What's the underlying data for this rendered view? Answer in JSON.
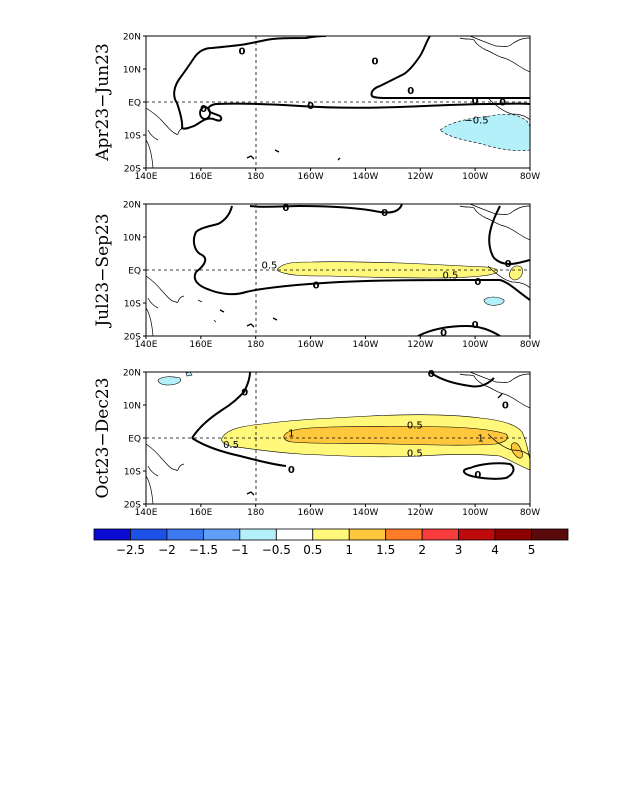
{
  "figure": {
    "panels": [
      {
        "title": "Apr23−Jun23",
        "labels": [
          {
            "text": "0",
            "lon": 175,
            "lat": 15.5
          },
          {
            "text": "0",
            "lon": 223.5,
            "lat": 12.5
          },
          {
            "text": "0",
            "lon": 236.5,
            "lat": 3.5
          },
          {
            "text": "0",
            "lon": 260,
            "lat": 0.5
          },
          {
            "text": "0",
            "lon": 270,
            "lat": 0
          },
          {
            "text": "0",
            "lon": 161,
            "lat": -2
          },
          {
            "text": "0",
            "lon": 200,
            "lat": -1
          },
          {
            "text": "−0.5",
            "lon": 260.5,
            "lat": -5.5
          }
        ]
      },
      {
        "title": "Jul23−Sep23",
        "labels": [
          {
            "text": "0",
            "lon": 191,
            "lat": 19
          },
          {
            "text": "0",
            "lon": 227,
            "lat": 17.5
          },
          {
            "text": "0.5",
            "lon": 185,
            "lat": 1.5
          },
          {
            "text": "0.5",
            "lon": 251,
            "lat": -1.5
          },
          {
            "text": "0",
            "lon": 202,
            "lat": -4.5
          },
          {
            "text": "0",
            "lon": 261,
            "lat": -3.5
          },
          {
            "text": "0",
            "lon": 272,
            "lat": 2
          },
          {
            "text": "0",
            "lon": 260,
            "lat": -16.5
          },
          {
            "text": "0",
            "lon": 248.5,
            "lat": -19
          }
        ]
      },
      {
        "title": "Oct23−Dec23",
        "labels": [
          {
            "text": "0",
            "lon": 176,
            "lat": 14
          },
          {
            "text": "0",
            "lon": 244,
            "lat": 19.5
          },
          {
            "text": "0",
            "lon": 271,
            "lat": 10
          },
          {
            "text": "0.5",
            "lon": 238,
            "lat": 4
          },
          {
            "text": "1",
            "lon": 193,
            "lat": 1.5
          },
          {
            "text": "1",
            "lon": 262,
            "lat": 0
          },
          {
            "text": "0.5",
            "lon": 171,
            "lat": -2
          },
          {
            "text": "0.5",
            "lon": 238,
            "lat": -4.5
          },
          {
            "text": "0",
            "lon": 193,
            "lat": -9.5
          },
          {
            "text": "0",
            "lon": 261,
            "lat": -11
          }
        ]
      }
    ],
    "x_ticks": [
      "140E",
      "160E",
      "180",
      "160W",
      "140W",
      "120W",
      "100W",
      "80W"
    ],
    "y_ticks": [
      "20N",
      "10N",
      "EQ",
      "10S",
      "20S"
    ],
    "colorbar": {
      "colors": [
        "#0a0ad2",
        "#1d50e6",
        "#3c78f0",
        "#5f9ff8",
        "#b4f0fa",
        "#ffffff",
        "#fff87a",
        "#ffc83c",
        "#ff7c28",
        "#fa3c3c",
        "#be0a0a",
        "#8c0000",
        "#5a0a0a"
      ],
      "labels": [
        "−2.5",
        "−2",
        "−1.5",
        "−1",
        "−0.5",
        "0.5",
        "1",
        "1.5",
        "2",
        "3",
        "4",
        "5"
      ]
    }
  },
  "chart_data": [
    {
      "type": "heatmap",
      "title": "Apr23−Jun23",
      "xlim": [
        "140E",
        "80W"
      ],
      "ylim": [
        "20S",
        "20N"
      ],
      "x_ticks": [
        "140E",
        "160E",
        "180",
        "160W",
        "140W",
        "120W",
        "100W",
        "80W"
      ],
      "y_ticks": [
        "20N",
        "10N",
        "EQ",
        "10S",
        "20S"
      ],
      "contour_levels": [
        -0.5,
        0
      ],
      "shaded_regions": [
        {
          "range": "-1 to -0.5",
          "color": "#b4f0fa",
          "location": "far eastern Pacific, 10S, 100W-80W"
        }
      ]
    },
    {
      "type": "heatmap",
      "title": "Jul23−Sep23",
      "xlim": [
        "140E",
        "80W"
      ],
      "ylim": [
        "20S",
        "20N"
      ],
      "contour_levels": [
        -0.5,
        0,
        0.5
      ],
      "shaded_regions": [
        {
          "range": "0.5 to 1",
          "color": "#fff87a",
          "location": "equatorial band, 170W-100W"
        },
        {
          "range": "-1 to -0.5",
          "color": "#b4f0fa",
          "location": "near 12S, 95W"
        }
      ]
    },
    {
      "type": "heatmap",
      "title": "Oct23−Dec23",
      "xlim": [
        "140E",
        "80W"
      ],
      "ylim": [
        "20S",
        "20N"
      ],
      "contour_levels": [
        -0.5,
        0,
        0.5,
        1
      ],
      "shaded_regions": [
        {
          "range": "0.5 to 1",
          "color": "#fff87a",
          "location": "equatorial band, 175E-80W"
        },
        {
          "range": "1 to 1.5",
          "color": "#ffc83c",
          "location": "equator, 170W-95W"
        },
        {
          "range": "-1 to -0.5",
          "color": "#b4f0fa",
          "location": "near 17N, 160E"
        }
      ]
    }
  ]
}
